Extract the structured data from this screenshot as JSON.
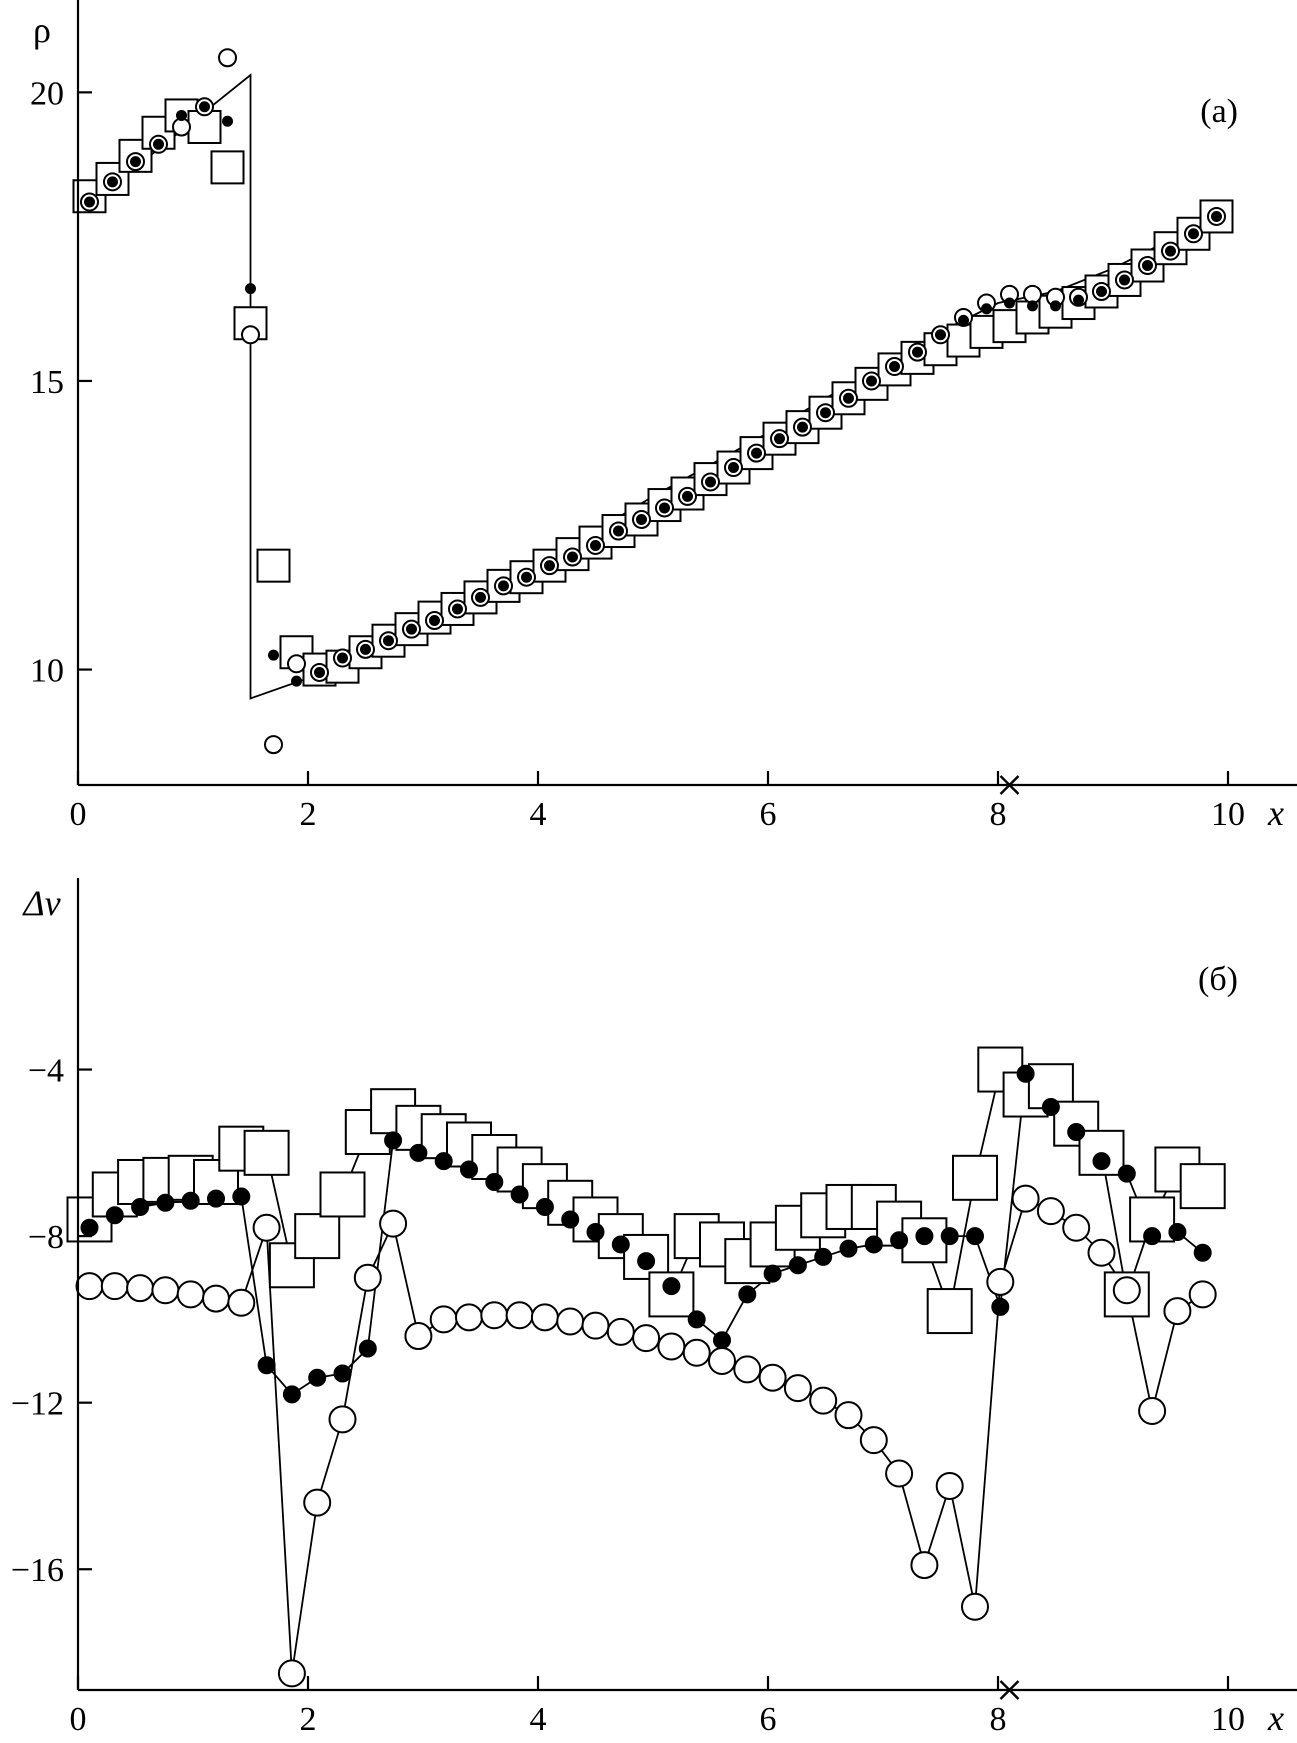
{
  "chart_data": [
    {
      "type": "scatter",
      "panel_tag": "(a)",
      "xlabel": "x",
      "ylabel": "ρ",
      "xlim": [
        0,
        10.6
      ],
      "ylim": [
        8.0,
        21.6
      ],
      "x_ticks": [
        0,
        2,
        4,
        6,
        8,
        10
      ],
      "x_tick_labels": [
        "0",
        "2",
        "4",
        "6",
        "8",
        "10"
      ],
      "y_ticks": [
        10,
        15,
        20
      ],
      "y_tick_labels": [
        "10",
        "15",
        "20"
      ],
      "x_marker": 8.1,
      "grid": false,
      "line": {
        "x": [
          0,
          0.5,
          1.0,
          1.5,
          1.5,
          2.0,
          2.5,
          3.0,
          3.5,
          4.0,
          4.5,
          5.0,
          5.5,
          6.0,
          6.5,
          7.0,
          7.5,
          8.0,
          8.5,
          9.0,
          9.5,
          10.0
        ],
        "y": [
          18.0,
          18.7,
          19.5,
          20.3,
          9.5,
          9.85,
          10.25,
          10.75,
          11.3,
          11.85,
          12.4,
          13.0,
          13.55,
          14.1,
          14.7,
          15.25,
          15.85,
          16.35,
          16.55,
          16.95,
          17.45,
          18.0
        ]
      },
      "series": [
        {
          "marker": "open-square",
          "x": [
            0.1,
            0.3,
            0.5,
            0.7,
            0.9,
            1.1,
            1.3,
            1.5,
            1.7,
            1.9,
            2.1,
            2.3,
            2.5,
            2.7,
            2.9,
            3.1,
            3.3,
            3.5,
            3.7,
            3.9,
            4.1,
            4.3,
            4.5,
            4.7,
            4.9,
            5.1,
            5.3,
            5.5,
            5.7,
            5.9,
            6.1,
            6.3,
            6.5,
            6.7,
            6.9,
            7.1,
            7.3,
            7.5,
            7.7,
            7.9,
            8.1,
            8.3,
            8.5,
            8.7,
            8.9,
            9.1,
            9.3,
            9.5,
            9.7,
            9.9
          ],
          "y": [
            18.2,
            18.5,
            18.9,
            19.3,
            19.6,
            19.4,
            18.7,
            16.0,
            11.8,
            10.3,
            10.0,
            10.05,
            10.3,
            10.5,
            10.7,
            10.9,
            11.05,
            11.25,
            11.45,
            11.6,
            11.8,
            12.0,
            12.2,
            12.4,
            12.6,
            12.85,
            13.05,
            13.3,
            13.5,
            13.75,
            14.0,
            14.2,
            14.45,
            14.7,
            14.95,
            15.2,
            15.4,
            15.55,
            15.7,
            15.85,
            15.95,
            16.1,
            16.2,
            16.35,
            16.55,
            16.75,
            17.0,
            17.3,
            17.55,
            17.85
          ]
        },
        {
          "marker": "open-circle",
          "x": [
            0.1,
            0.3,
            0.5,
            0.7,
            0.9,
            1.1,
            1.3,
            1.5,
            1.7,
            1.9,
            2.1,
            2.3,
            2.5,
            2.7,
            2.9,
            3.1,
            3.3,
            3.5,
            3.7,
            3.9,
            4.1,
            4.3,
            4.5,
            4.7,
            4.9,
            5.1,
            5.3,
            5.5,
            5.7,
            5.9,
            6.1,
            6.3,
            6.5,
            6.7,
            6.9,
            7.1,
            7.3,
            7.5,
            7.7,
            7.9,
            8.1,
            8.3,
            8.5,
            8.7,
            8.9,
            9.1,
            9.3,
            9.5,
            9.7,
            9.9
          ],
          "y": [
            18.1,
            18.45,
            18.8,
            19.1,
            19.4,
            19.75,
            20.6,
            15.8,
            8.7,
            10.1,
            9.95,
            10.2,
            10.35,
            10.5,
            10.7,
            10.85,
            11.05,
            11.25,
            11.45,
            11.6,
            11.8,
            11.95,
            12.15,
            12.4,
            12.6,
            12.8,
            13.0,
            13.25,
            13.5,
            13.75,
            14.0,
            14.2,
            14.45,
            14.7,
            15.0,
            15.25,
            15.5,
            15.8,
            16.1,
            16.35,
            16.5,
            16.5,
            16.45,
            16.45,
            16.55,
            16.75,
            17.0,
            17.25,
            17.55,
            17.85
          ]
        },
        {
          "marker": "filled-dot",
          "x": [
            0.1,
            0.3,
            0.5,
            0.7,
            0.9,
            1.1,
            1.3,
            1.5,
            1.7,
            1.9,
            2.1,
            2.3,
            2.5,
            2.7,
            2.9,
            3.1,
            3.3,
            3.5,
            3.7,
            3.9,
            4.1,
            4.3,
            4.5,
            4.7,
            4.9,
            5.1,
            5.3,
            5.5,
            5.7,
            5.9,
            6.1,
            6.3,
            6.5,
            6.7,
            6.9,
            7.1,
            7.3,
            7.5,
            7.7,
            7.9,
            8.1,
            8.3,
            8.5,
            8.7,
            8.9,
            9.1,
            9.3,
            9.5,
            9.7,
            9.9
          ],
          "y": [
            18.1,
            18.45,
            18.8,
            19.1,
            19.6,
            19.75,
            19.5,
            16.6,
            10.25,
            9.8,
            9.95,
            10.2,
            10.35,
            10.5,
            10.7,
            10.85,
            11.05,
            11.25,
            11.45,
            11.6,
            11.8,
            11.95,
            12.15,
            12.4,
            12.6,
            12.8,
            13.0,
            13.25,
            13.5,
            13.75,
            14.0,
            14.2,
            14.45,
            14.7,
            15.0,
            15.25,
            15.5,
            15.8,
            16.05,
            16.25,
            16.35,
            16.3,
            16.3,
            16.4,
            16.55,
            16.75,
            17.0,
            17.25,
            17.55,
            17.85
          ]
        }
      ]
    },
    {
      "type": "line",
      "panel_tag": "(б)",
      "xlabel": "x",
      "ylabel": "Δv",
      "xlim": [
        0,
        10.6
      ],
      "ylim": [
        -18.9,
        0.6
      ],
      "x_ticks": [
        0,
        2,
        4,
        6,
        8,
        10
      ],
      "x_tick_labels": [
        "0",
        "2",
        "4",
        "6",
        "8",
        "10"
      ],
      "y_ticks": [
        -4,
        -8,
        -12,
        -16
      ],
      "y_tick_labels": [
        "−4",
        "−8",
        "−12",
        "−16"
      ],
      "x_marker": 8.1,
      "grid": false,
      "series": [
        {
          "marker": "open-square",
          "x": [
            0.1,
            0.32,
            0.54,
            0.76,
            0.98,
            1.2,
            1.42,
            1.64,
            1.86,
            2.08,
            2.3,
            2.52,
            2.74,
            2.96,
            3.18,
            3.4,
            3.62,
            3.84,
            4.06,
            4.28,
            4.5,
            4.72,
            4.94,
            5.16,
            5.38,
            5.6,
            5.82,
            6.04,
            6.26,
            6.48,
            6.7,
            6.92,
            7.14,
            7.36,
            7.58,
            7.8,
            8.02,
            8.24,
            8.46,
            8.68,
            8.9,
            9.12,
            9.34,
            9.56,
            9.78
          ],
          "y": [
            -7.6,
            -7.0,
            -6.7,
            -6.65,
            -6.6,
            -6.7,
            -5.9,
            -6.0,
            -8.7,
            -8.0,
            -7.0,
            -5.5,
            -5.0,
            -5.4,
            -5.6,
            -5.8,
            -6.1,
            -6.4,
            -6.8,
            -7.2,
            -7.6,
            -8.0,
            -8.5,
            -9.4,
            -8.0,
            -8.2,
            -8.6,
            -8.2,
            -7.8,
            -7.5,
            -7.3,
            -7.3,
            -7.7,
            -8.1,
            -9.8,
            -6.6,
            -4.0,
            -4.6,
            -4.4,
            -5.3,
            -6.0,
            -9.4,
            -7.6,
            -6.4,
            -6.8
          ]
        },
        {
          "marker": "filled-dot",
          "x": [
            0.1,
            0.32,
            0.54,
            0.76,
            0.98,
            1.2,
            1.42,
            1.64,
            1.86,
            2.08,
            2.3,
            2.52,
            2.74,
            2.96,
            3.18,
            3.4,
            3.62,
            3.84,
            4.06,
            4.28,
            4.5,
            4.72,
            4.94,
            5.16,
            5.38,
            5.6,
            5.82,
            6.04,
            6.26,
            6.48,
            6.7,
            6.92,
            7.14,
            7.36,
            7.58,
            7.8,
            8.02,
            8.24,
            8.46,
            8.68,
            8.9,
            9.12,
            9.34,
            9.56,
            9.78
          ],
          "y": [
            -7.8,
            -7.5,
            -7.3,
            -7.2,
            -7.15,
            -7.1,
            -7.05,
            -11.1,
            -11.8,
            -11.4,
            -11.3,
            -10.7,
            -5.7,
            -6.0,
            -6.2,
            -6.4,
            -6.7,
            -7.0,
            -7.3,
            -7.6,
            -7.9,
            -8.2,
            -8.6,
            -9.2,
            -10.0,
            -10.5,
            -9.4,
            -8.9,
            -8.7,
            -8.5,
            -8.3,
            -8.2,
            -8.1,
            -8.0,
            -8.0,
            -8.0,
            -9.7,
            -4.1,
            -4.9,
            -5.5,
            -6.2,
            -6.5,
            -8.0,
            -7.9,
            -8.4
          ]
        },
        {
          "marker": "large-open-circle",
          "x": [
            0.1,
            0.32,
            0.54,
            0.76,
            0.98,
            1.2,
            1.42,
            1.64,
            1.86,
            2.08,
            2.3,
            2.52,
            2.74,
            2.96,
            3.18,
            3.4,
            3.62,
            3.84,
            4.06,
            4.28,
            4.5,
            4.72,
            4.94,
            5.16,
            5.38,
            5.6,
            5.82,
            6.04,
            6.26,
            6.48,
            6.7,
            6.92,
            7.14,
            7.36,
            7.58,
            7.8,
            8.02,
            8.24,
            8.46,
            8.68,
            8.9,
            9.12,
            9.34,
            9.56,
            9.78
          ],
          "y": [
            -9.2,
            -9.2,
            -9.25,
            -9.3,
            -9.4,
            -9.5,
            -9.6,
            -7.8,
            -18.5,
            -14.4,
            -12.4,
            -9.0,
            -7.7,
            -10.4,
            -10.0,
            -9.95,
            -9.9,
            -9.9,
            -9.95,
            -10.05,
            -10.15,
            -10.3,
            -10.45,
            -10.65,
            -10.8,
            -11.0,
            -11.2,
            -11.4,
            -11.65,
            -11.95,
            -12.3,
            -12.9,
            -13.7,
            -15.9,
            -14.0,
            -16.9,
            -9.1,
            -7.1,
            -7.4,
            -7.8,
            -8.4,
            -9.3,
            -12.2,
            -9.8,
            -9.4
          ]
        }
      ]
    }
  ]
}
